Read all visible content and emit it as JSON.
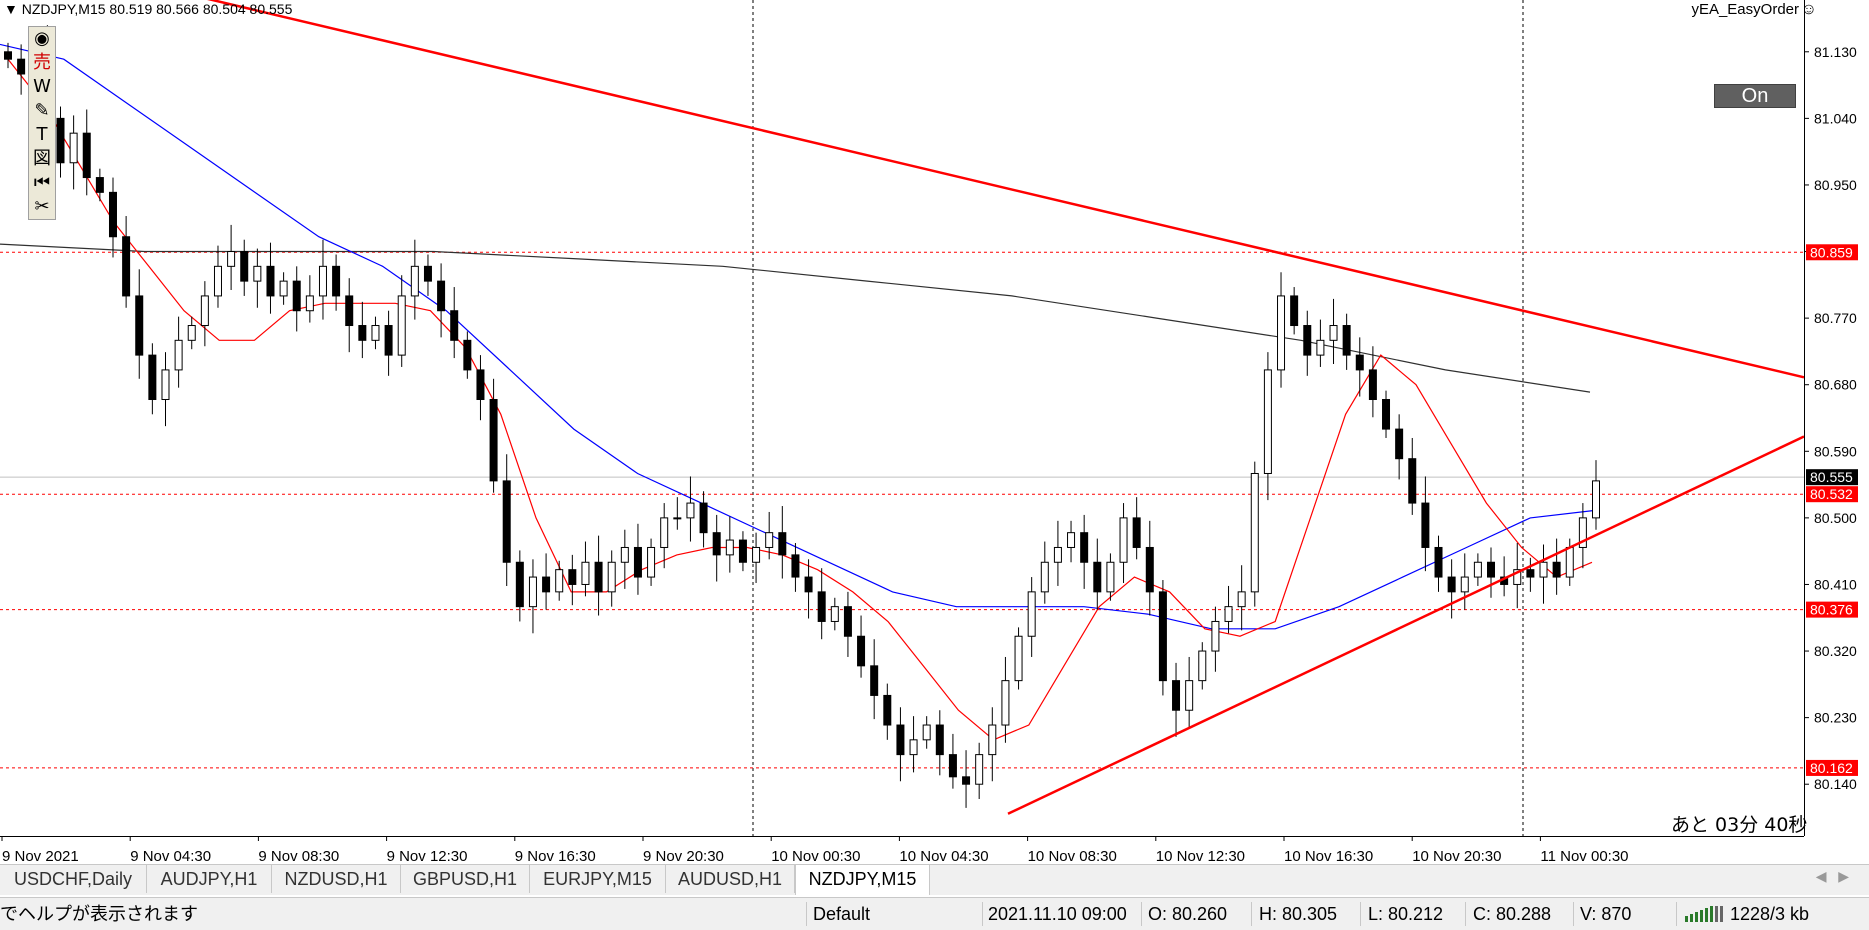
{
  "symbol_header": "NZDJPY,M15  80.519 80.566 80.504 80.555",
  "ea_name": "yEA_EasyOrder",
  "on_button": "On",
  "countdown": "あと 03分 40秒",
  "icons": {
    "eye": "eye-icon",
    "sell": "sell-icon",
    "w": "w-icon",
    "pencil": "pencil-icon",
    "text": "text-icon",
    "shape": "shape-icon",
    "rewind": "rewind-icon",
    "scissors": "scissors-icon",
    "smiley": "smiley-icon",
    "connection": "connection-bars-icon"
  },
  "toolbar_glyphs": [
    "◉",
    "売",
    "W",
    "✎",
    "T",
    "図",
    "⏮",
    "✂"
  ],
  "colors": {
    "bearish_line": "#ff0000",
    "ma_fast": "#ff0000",
    "ma_mid": "#0000ff",
    "ma_slow": "#303030",
    "price_highlight_bg": "#000000",
    "level_bg": "#ff0000"
  },
  "tabs": [
    "USDCHF,Daily",
    "AUDJPY,H1",
    "NZDUSD,H1",
    "GBPUSD,H1",
    "EURJPY,M15",
    "AUDUSD,H1",
    "NZDJPY,M15"
  ],
  "active_tab": "NZDJPY,M15",
  "status": {
    "help": "でヘルプが表示されます",
    "profile": "Default",
    "datetime": "2021.11.10 09:00",
    "open": "O: 80.260",
    "high": "H: 80.305",
    "low": "L: 80.212",
    "close": "C: 80.288",
    "volume": "V: 870",
    "traffic": "1228/3 kb"
  },
  "chart_data": {
    "type": "candlestick",
    "symbol": "NZDJPY",
    "timeframe": "M15",
    "y_ticks": [
      "81.130",
      "81.040",
      "80.950",
      "80.860",
      "80.770",
      "80.680",
      "80.590",
      "80.500",
      "80.410",
      "80.320",
      "80.230",
      "80.140"
    ],
    "ylim": [
      80.07,
      81.2
    ],
    "x_ticks": [
      "9 Nov 2021",
      "9 Nov 04:30",
      "9 Nov 08:30",
      "9 Nov 12:30",
      "9 Nov 16:30",
      "9 Nov 20:30",
      "10 Nov 00:30",
      "10 Nov 04:30",
      "10 Nov 08:30",
      "10 Nov 12:30",
      "10 Nov 16:30",
      "10 Nov 20:30",
      "11 Nov 00:30"
    ],
    "price_labels": [
      {
        "value": "80.859",
        "style": "red"
      },
      {
        "value": "80.555",
        "style": "black"
      },
      {
        "value": "80.532",
        "style": "red"
      },
      {
        "value": "80.376",
        "style": "red"
      },
      {
        "value": "80.162",
        "style": "red"
      }
    ],
    "horizontal_levels": [
      80.859,
      80.532,
      80.376,
      80.162
    ],
    "current_price": 80.555,
    "trendlines": [
      {
        "name": "resistance",
        "from": [
          0,
          81.22
        ],
        "to": [
          1,
          80.69
        ]
      },
      {
        "name": "support",
        "from": [
          0,
          80.1
        ],
        "to": [
          1,
          80.61
        ]
      }
    ],
    "close_series": [
      81.12,
      81.1,
      81.13,
      81.04,
      80.98,
      81.02,
      80.96,
      80.94,
      80.88,
      80.8,
      80.72,
      80.66,
      80.7,
      80.74,
      80.76,
      80.8,
      80.84,
      80.86,
      80.82,
      80.84,
      80.8,
      80.82,
      80.78,
      80.8,
      80.84,
      80.8,
      80.76,
      80.74,
      80.76,
      80.72,
      80.8,
      80.84,
      80.82,
      80.78,
      80.74,
      80.7,
      80.66,
      80.55,
      80.44,
      80.38,
      80.42,
      80.4,
      80.43,
      80.41,
      80.44,
      80.4,
      80.44,
      80.46,
      80.42,
      80.46,
      80.5,
      80.5,
      80.52,
      80.48,
      80.45,
      80.47,
      80.44,
      80.46,
      80.48,
      80.45,
      80.42,
      80.4,
      80.36,
      80.38,
      80.34,
      80.3,
      80.26,
      80.22,
      80.18,
      80.2,
      80.22,
      80.18,
      80.15,
      80.14,
      80.18,
      80.22,
      80.28,
      80.34,
      80.4,
      80.44,
      80.46,
      80.48,
      80.44,
      80.4,
      80.44,
      80.5,
      80.46,
      80.4,
      80.28,
      80.24,
      80.28,
      80.32,
      80.36,
      80.38,
      80.4,
      80.56,
      80.7,
      80.8,
      80.76,
      80.72,
      80.74,
      80.76,
      80.72,
      80.7,
      80.66,
      80.62,
      80.58,
      80.52,
      80.46,
      80.42,
      80.4,
      80.42,
      80.44,
      80.42,
      80.41,
      80.43,
      80.42,
      80.44,
      80.42,
      80.46,
      80.5,
      80.55
    ],
    "ma_fast": [
      81.12,
      81.06,
      80.98,
      80.9,
      80.84,
      80.78,
      80.74,
      80.74,
      80.78,
      80.79,
      80.79,
      80.79,
      80.78,
      80.73,
      80.64,
      80.5,
      80.4,
      80.4,
      80.43,
      80.45,
      80.46,
      80.46,
      80.45,
      80.43,
      80.4,
      80.36,
      80.3,
      80.24,
      80.2,
      80.22,
      80.3,
      80.38,
      80.42,
      80.4,
      80.35,
      80.34,
      80.36,
      80.5,
      80.64,
      80.72,
      80.68,
      80.6,
      80.52,
      80.46,
      80.42,
      80.44
    ],
    "ma_mid": [
      81.14,
      81.12,
      81.06,
      81.0,
      80.94,
      80.88,
      80.84,
      80.78,
      80.7,
      80.62,
      80.56,
      80.52,
      80.48,
      80.44,
      80.4,
      80.38,
      80.38,
      80.38,
      80.37,
      80.35,
      80.35,
      80.38,
      80.42,
      80.46,
      80.5,
      80.51
    ],
    "ma_slow": [
      80.87,
      80.86,
      80.86,
      80.86,
      80.85,
      80.84,
      80.82,
      80.8,
      80.77,
      80.74,
      80.7,
      80.67
    ]
  }
}
